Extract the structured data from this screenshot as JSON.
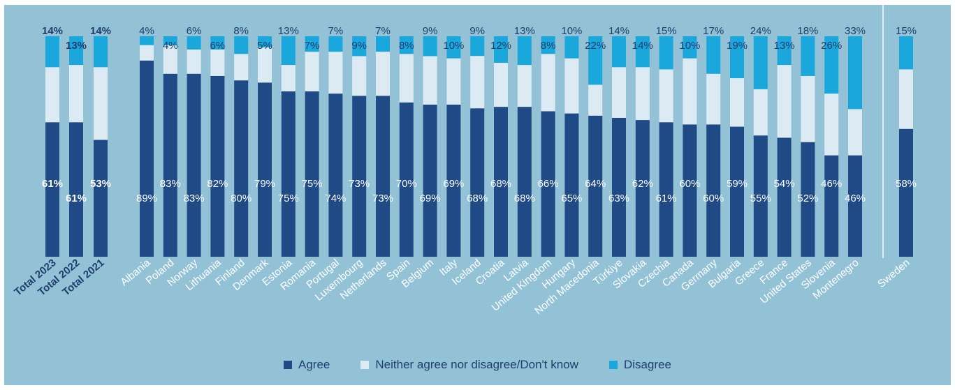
{
  "chart_data": {
    "type": "bar",
    "stacked": true,
    "ylim": [
      0,
      100
    ],
    "grid": false,
    "legend_position": "bottom-center",
    "categories": [
      "Total 2023",
      "Total 2022",
      "Total 2021",
      "Albania",
      "Poland",
      "Norway",
      "Lithuania",
      "Finland",
      "Denmark",
      "Estonia",
      "Romania",
      "Portugal",
      "Luxembourg",
      "Netherlands",
      "Spain",
      "Belgium",
      "Italy",
      "Iceland",
      "Croatia",
      "Latvia",
      "United Kingdom",
      "Hungary",
      "North Macedonia",
      "Türkiye",
      "Slovakia",
      "Czechia",
      "Canada",
      "Germany",
      "Bulgaria",
      "Greece",
      "France",
      "United States",
      "Slovenia",
      "Montenegro",
      "Sweden"
    ],
    "series": [
      {
        "name": "Agree",
        "color": "#1f4a86",
        "values": [
          61,
          61,
          53,
          89,
          83,
          83,
          82,
          80,
          79,
          75,
          75,
          74,
          73,
          73,
          70,
          69,
          69,
          68,
          68,
          68,
          66,
          65,
          64,
          63,
          62,
          61,
          60,
          60,
          59,
          55,
          54,
          52,
          46,
          46,
          58
        ]
      },
      {
        "name": "Neither agree nor disagree/Don't know",
        "color": "#dcebf3",
        "values": [
          25,
          26,
          33,
          7,
          13,
          11,
          12,
          12,
          16,
          12,
          18,
          19,
          18,
          20,
          22,
          22,
          21,
          24,
          20,
          19,
          26,
          25,
          14,
          23,
          24,
          24,
          30,
          23,
          22,
          21,
          33,
          30,
          28,
          21,
          27
        ]
      },
      {
        "name": "Disagree",
        "color": "#1aa7dc",
        "values": [
          14,
          13,
          14,
          4,
          4,
          6,
          6,
          8,
          5,
          13,
          7,
          7,
          9,
          7,
          8,
          9,
          10,
          9,
          12,
          13,
          8,
          10,
          22,
          14,
          14,
          15,
          10,
          17,
          19,
          24,
          13,
          18,
          26,
          33,
          15
        ]
      }
    ],
    "agree_labels": [
      "61%",
      "61%",
      "53%",
      "89%",
      "83%",
      "83%",
      "82%",
      "80%",
      "79%",
      "75%",
      "75%",
      "74%",
      "73%",
      "73%",
      "70%",
      "69%",
      "69%",
      "68%",
      "68%",
      "68%",
      "66%",
      "65%",
      "64%",
      "63%",
      "62%",
      "61%",
      "60%",
      "60%",
      "59%",
      "55%",
      "54%",
      "52%",
      "46%",
      "46%",
      "58%"
    ],
    "disagree_labels": [
      "14%",
      "13%",
      "14%",
      "4%",
      "4%",
      "6%",
      "6%",
      "8%",
      "5%",
      "13%",
      "7%",
      "7%",
      "9%",
      "7%",
      "8%",
      "9%",
      "10%",
      "9%",
      "12%",
      "13%",
      "8%",
      "10%",
      "22%",
      "14%",
      "14%",
      "15%",
      "10%",
      "17%",
      "19%",
      "24%",
      "13%",
      "18%",
      "26%",
      "33%",
      "15%"
    ],
    "bold_categories": [
      "Total 2023",
      "Total 2022",
      "Total 2021"
    ]
  }
}
